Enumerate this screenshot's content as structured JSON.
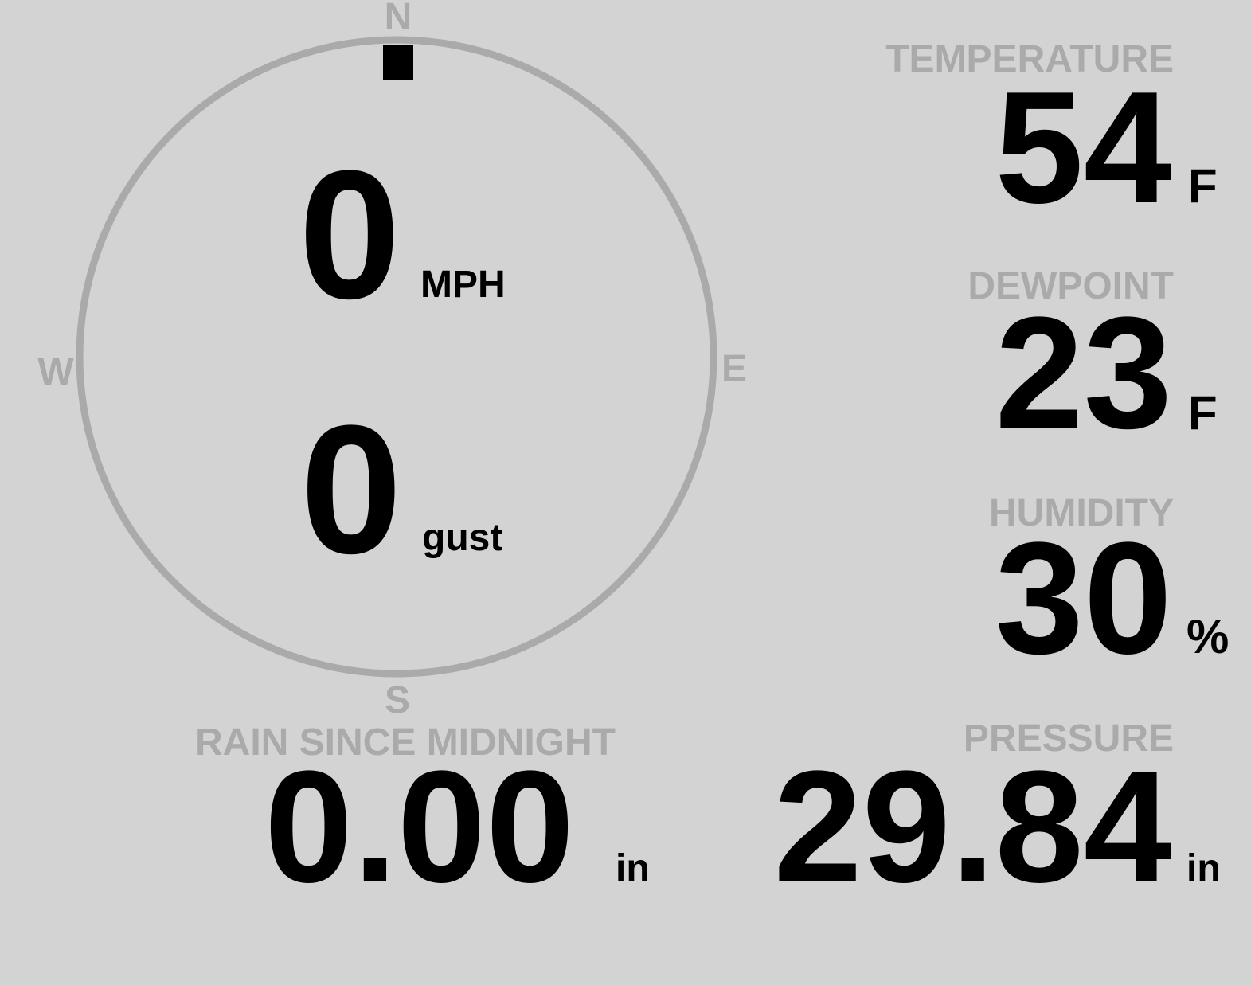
{
  "colors": {
    "background": "#d3d3d3",
    "label": "#aaaaaa",
    "value": "#000000",
    "ring": "#aaaaaa"
  },
  "wind": {
    "compass": {
      "n": "N",
      "e": "E",
      "s": "S",
      "w": "W"
    },
    "direction_degrees": 0,
    "speed": "0",
    "speed_unit": "MPH",
    "gust": "0",
    "gust_unit": "gust"
  },
  "temperature": {
    "label": "TEMPERATURE",
    "value": "54",
    "unit": "F"
  },
  "dewpoint": {
    "label": "DEWPOINT",
    "value": "23",
    "unit": "F"
  },
  "humidity": {
    "label": "HUMIDITY",
    "value": "30",
    "unit": "%"
  },
  "pressure": {
    "label": "PRESSURE",
    "value": "29.84",
    "unit": "in"
  },
  "rain": {
    "label": "RAIN SINCE MIDNIGHT",
    "value": "0.00",
    "unit": "in"
  }
}
